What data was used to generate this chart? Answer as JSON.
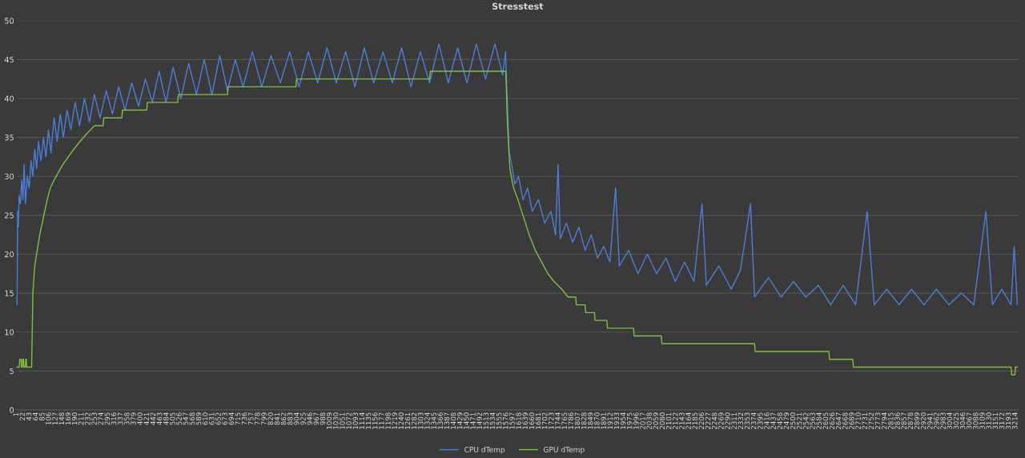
{
  "chart_data": {
    "type": "line",
    "title": "Stresstest",
    "xlim": [
      1,
      3225
    ],
    "xticks": [
      1,
      22,
      43,
      64,
      85,
      106,
      127,
      148,
      169,
      190,
      211,
      232,
      253,
      274,
      295,
      316,
      337,
      358,
      379,
      400,
      421,
      442,
      463,
      484,
      505,
      526,
      547,
      568,
      589,
      610,
      631,
      652,
      673,
      694,
      715,
      736,
      757,
      778,
      799,
      820,
      841,
      862,
      883,
      904,
      925,
      946,
      967,
      988,
      1009,
      1030,
      1051,
      1072,
      1093,
      1114,
      1135,
      1156,
      1177,
      1198,
      1219,
      1240,
      1261,
      1282,
      1303,
      1324,
      1345,
      1366,
      1387,
      1408,
      1429,
      1450,
      1471,
      1492,
      1513,
      1534,
      1555,
      1576,
      1597,
      1618,
      1639,
      1660,
      1681,
      1702,
      1723,
      1744,
      1765,
      1786,
      1807,
      1828,
      1849,
      1870,
      1891,
      1912,
      1933,
      1954,
      1975,
      1996,
      2017,
      2038,
      2059,
      2080,
      2101,
      2122,
      2143,
      2164,
      2185,
      2206,
      2227,
      2248,
      2269,
      2290,
      2311,
      2332,
      2353,
      2374,
      2395,
      2416,
      2437,
      2458,
      2479,
      2500,
      2521,
      2542,
      2563,
      2584,
      2605,
      2626,
      2647,
      2668,
      2689,
      2710,
      2731,
      2752,
      2773,
      2794,
      2815,
      2836,
      2857,
      2878,
      2899,
      2920,
      2941,
      2962,
      2983,
      3004,
      3025,
      3046,
      3067,
      3088,
      3109,
      3130,
      3151,
      3172,
      3193,
      3214
    ],
    "ylim": [
      0,
      50
    ],
    "yticks": [
      0,
      5,
      10,
      15,
      20,
      25,
      30,
      35,
      40,
      45,
      50
    ],
    "grid": "y",
    "legend": "bottom",
    "marker": "none",
    "line_style": "solid",
    "series": [
      {
        "name": "CPU dTemp",
        "color": "#4a7fd8",
        "x": [
          1,
          3,
          5,
          7,
          10,
          14,
          18,
          22,
          26,
          30,
          36,
          42,
          48,
          54,
          60,
          66,
          72,
          80,
          88,
          96,
          104,
          112,
          122,
          132,
          142,
          152,
          164,
          176,
          190,
          204,
          220,
          236,
          252,
          270,
          290,
          310,
          330,
          350,
          372,
          394,
          416,
          438,
          460,
          482,
          505,
          530,
          555,
          580,
          605,
          630,
          655,
          680,
          705,
          730,
          760,
          790,
          820,
          850,
          880,
          910,
          940,
          970,
          1000,
          1030,
          1060,
          1090,
          1120,
          1150,
          1180,
          1210,
          1240,
          1270,
          1300,
          1330,
          1360,
          1390,
          1420,
          1450,
          1480,
          1510,
          1540,
          1565,
          1574,
          1586,
          1594,
          1604,
          1616,
          1630,
          1645,
          1660,
          1680,
          1700,
          1720,
          1735,
          1743,
          1750,
          1770,
          1790,
          1810,
          1830,
          1850,
          1870,
          1890,
          1910,
          1928,
          1940,
          1970,
          2000,
          2030,
          2060,
          2090,
          2120,
          2150,
          2180,
          2206,
          2220,
          2260,
          2300,
          2330,
          2362,
          2375,
          2420,
          2460,
          2500,
          2540,
          2580,
          2620,
          2660,
          2700,
          2737,
          2760,
          2800,
          2840,
          2880,
          2920,
          2960,
          3000,
          3040,
          3080,
          3119,
          3140,
          3170,
          3200,
          3210,
          3220
        ],
        "values": [
          14.5,
          13.5,
          25.5,
          23.5,
          27.5,
          26.5,
          29.5,
          27,
          31.5,
          26.5,
          30,
          28.5,
          32,
          30,
          33.5,
          31,
          34.5,
          32,
          35,
          32.5,
          36,
          33,
          37.5,
          34.5,
          38,
          35,
          38.5,
          36,
          39.5,
          36.5,
          40,
          37,
          40.5,
          37.5,
          41,
          38,
          41.5,
          38.5,
          42,
          39,
          42.5,
          39.5,
          43.5,
          39.5,
          44,
          40,
          44.5,
          40.5,
          45,
          40.5,
          45.5,
          41,
          45,
          41.5,
          46,
          41.5,
          45.5,
          42,
          46,
          41.5,
          46,
          42,
          46.5,
          42,
          46,
          41.5,
          46.5,
          42,
          46,
          42,
          46.5,
          41.5,
          46,
          42,
          47,
          42,
          46.5,
          42,
          47,
          42.5,
          47,
          43,
          46,
          33,
          31.5,
          29,
          30,
          27,
          28.5,
          25.5,
          27,
          24,
          25.5,
          22.5,
          31.5,
          22,
          24,
          21.5,
          23.5,
          20.5,
          22.5,
          19.5,
          21,
          19,
          28.5,
          18.5,
          20.5,
          17.5,
          20,
          17.5,
          19.5,
          16.5,
          19,
          16.5,
          26.5,
          16,
          18.5,
          15.5,
          18,
          26.5,
          14.5,
          17,
          14.5,
          16.5,
          14.5,
          16,
          13.5,
          16,
          13.5,
          25.5,
          13.5,
          15.5,
          13.5,
          15.5,
          13.5,
          15.5,
          13.5,
          15,
          13.5,
          25.5,
          13.5,
          15.5,
          13.5,
          21,
          13.5
        ]
      },
      {
        "name": "GPU dTemp",
        "color": "#7cc242",
        "x": [
          1,
          10,
          12,
          16,
          17,
          20,
          21,
          24,
          25,
          30,
          31,
          33,
          34,
          50,
          54,
          60,
          68,
          76,
          84,
          92,
          100,
          110,
          122,
          136,
          150,
          168,
          186,
          206,
          228,
          252,
          280,
          282,
          340,
          342,
          420,
          422,
          520,
          522,
          680,
          682,
          900,
          902,
          1330,
          1332,
          1575,
          1580,
          1588,
          1600,
          1614,
          1630,
          1650,
          1670,
          1690,
          1710,
          1730,
          1755,
          1775,
          1800,
          1802,
          1830,
          1832,
          1860,
          1862,
          1900,
          1902,
          1986,
          1988,
          2075,
          2077,
          2375,
          2377,
          2614,
          2616,
          2691,
          2693,
          3200,
          3202,
          3212,
          3214,
          3220
        ],
        "values": [
          5.5,
          5.5,
          6.5,
          6.5,
          5.5,
          5.5,
          6.5,
          6.5,
          5.5,
          5.5,
          6.5,
          6.5,
          5.5,
          5.5,
          15,
          18.5,
          20.5,
          22.5,
          24,
          25.5,
          27,
          28.5,
          29.5,
          30.5,
          31.5,
          32.5,
          33.5,
          34.5,
          35.5,
          36.5,
          36.5,
          37.5,
          37.5,
          38.5,
          38.5,
          39.5,
          39.5,
          40.5,
          40.5,
          41.5,
          41.5,
          42.5,
          42.5,
          43.5,
          43.5,
          37,
          31,
          28.5,
          27,
          25,
          22.5,
          20.5,
          19,
          17.5,
          16.5,
          15.5,
          14.5,
          14.5,
          13.5,
          13.5,
          12.5,
          12.5,
          11.5,
          11.5,
          10.5,
          10.5,
          9.5,
          9.5,
          8.5,
          8.5,
          7.5,
          7.5,
          6.5,
          6.5,
          5.5,
          5.5,
          4.5,
          4.5,
          5.5,
          5.5
        ]
      }
    ]
  }
}
